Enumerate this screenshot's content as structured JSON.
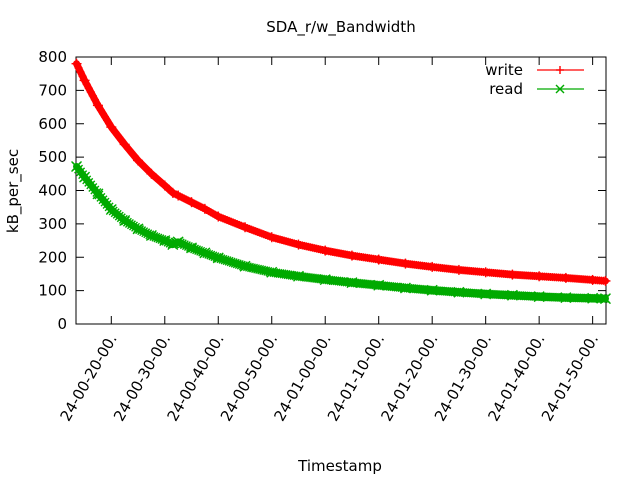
{
  "chart_data": {
    "type": "line",
    "title": "SDA_r/w_Bandwidth",
    "xlabel": "Timestamp",
    "ylabel": "kB_per_sec",
    "ylim": [
      0,
      800
    ],
    "yticks": [
      0,
      100,
      200,
      300,
      400,
      500,
      600,
      700,
      800
    ],
    "xlim_minutes": [
      13.4,
      112.5
    ],
    "xticks": [
      {
        "label": "24-00-20-00.",
        "minute": 20
      },
      {
        "label": "24-00-30-00.",
        "minute": 30
      },
      {
        "label": "24-00-40-00.",
        "minute": 40
      },
      {
        "label": "24-00-50-00.",
        "minute": 50
      },
      {
        "label": "24-01-00-00.",
        "minute": 60
      },
      {
        "label": "24-01-10-00.",
        "minute": 70
      },
      {
        "label": "24-01-20-00.",
        "minute": 80
      },
      {
        "label": "24-01-30-00.",
        "minute": 90
      },
      {
        "label": "24-01-40-00.",
        "minute": 100
      },
      {
        "label": "24-01-50-00.",
        "minute": 110
      }
    ],
    "legend_position": "top-right",
    "grid": false,
    "series": [
      {
        "name": "write",
        "color": "#ff0000",
        "marker": "plus",
        "x": [
          13.5,
          15,
          17.5,
          20,
          22.5,
          25,
          27.5,
          30,
          31.5,
          32.5,
          35,
          37.5,
          40,
          45,
          50,
          55,
          60,
          65,
          70,
          75,
          80,
          85,
          90,
          95,
          100,
          105,
          110,
          112.4
        ],
        "values": [
          780,
          730,
          655,
          590,
          538,
          490,
          450,
          415,
          393,
          385,
          365,
          345,
          322,
          290,
          260,
          238,
          220,
          205,
          193,
          181,
          171,
          162,
          155,
          148,
          143,
          138,
          132,
          129
        ]
      },
      {
        "name": "read",
        "color": "#00aa00",
        "marker": "cross",
        "x": [
          13.5,
          15,
          17.5,
          20,
          22.5,
          25,
          27.5,
          30,
          31.5,
          32.2,
          32.5,
          35,
          37.5,
          40,
          45,
          50,
          55,
          60,
          65,
          70,
          75,
          80,
          85,
          90,
          95,
          100,
          105,
          110,
          112.4
        ],
        "values": [
          472,
          440,
          390,
          343,
          310,
          285,
          265,
          250,
          238,
          243,
          246,
          228,
          213,
          198,
          173,
          155,
          143,
          133,
          124,
          116,
          108,
          101,
          95,
          90,
          86,
          82,
          79,
          77,
          76
        ]
      }
    ]
  }
}
